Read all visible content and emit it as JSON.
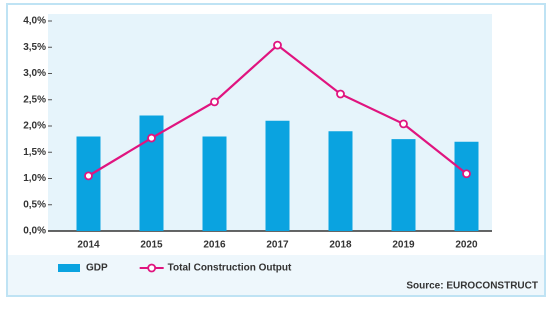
{
  "chart_data": {
    "type": "bar",
    "categories": [
      "2014",
      "2015",
      "2016",
      "2017",
      "2018",
      "2019",
      "2020"
    ],
    "series": [
      {
        "name": "GDP",
        "type": "bar",
        "color": "#0aa3e0",
        "values": [
          1.8,
          2.2,
          1.8,
          2.1,
          1.9,
          1.75,
          1.7
        ]
      },
      {
        "name": "Total Construction Output",
        "type": "line",
        "color": "#e0147f",
        "values": [
          1.05,
          1.77,
          2.46,
          3.54,
          2.61,
          2.04,
          1.09
        ]
      }
    ],
    "ylim": [
      0,
      4.0
    ],
    "yticks": [
      {
        "value": 0,
        "label": "0,0%"
      },
      {
        "value": 0.5,
        "label": "0,5%"
      },
      {
        "value": 1.0,
        "label": "1,0%"
      },
      {
        "value": 1.5,
        "label": "1,5%"
      },
      {
        "value": 2.0,
        "label": "2,0%"
      },
      {
        "value": 2.5,
        "label": "2,5%"
      },
      {
        "value": 3.0,
        "label": "3,0%"
      },
      {
        "value": 3.5,
        "label": "3,5%"
      },
      {
        "value": 4.0,
        "label": "4,0%"
      }
    ],
    "source": "Source: EUROCONSTRUCT",
    "grid": false
  }
}
